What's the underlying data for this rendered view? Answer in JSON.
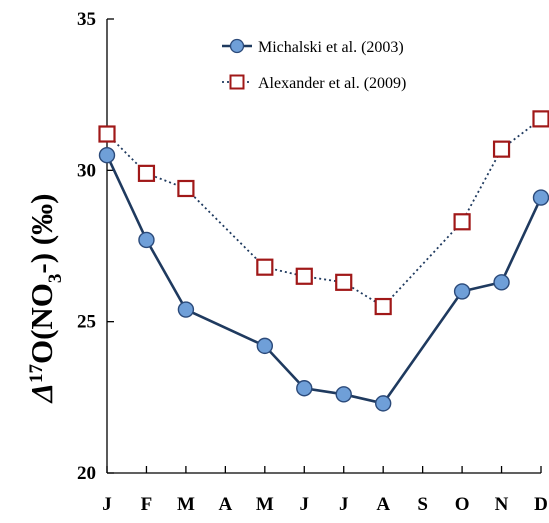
{
  "chart_data": {
    "type": "line",
    "title": "",
    "xlabel": "",
    "ylabel": {
      "symbol": "Δ",
      "sup": "17",
      "mid": "O(NO",
      "sub": "3",
      "tail": "-) (‰)"
    },
    "categories": [
      "J",
      "F",
      "M",
      "A",
      "M",
      "J",
      "J",
      "A",
      "S",
      "O",
      "N",
      "D"
    ],
    "ylim": [
      20,
      35
    ],
    "yticks": [
      20,
      25,
      30,
      35
    ],
    "grid": false,
    "legend_position": "top-right",
    "series": [
      {
        "name": "Michalski et al. (2003)",
        "marker": "circle",
        "line_style": "solid",
        "line_color": "#1f3a5f",
        "marker_fill": "#6f9fd8",
        "marker_stroke": "#2b4a7a",
        "values": [
          30.5,
          27.7,
          25.4,
          null,
          24.2,
          22.8,
          22.6,
          22.3,
          null,
          26.0,
          26.3,
          29.1
        ]
      },
      {
        "name": "Alexander et al. (2009)",
        "marker": "square",
        "line_style": "dotted",
        "line_color": "#1f3a5f",
        "marker_fill": "#ffffff",
        "marker_stroke": "#a01818",
        "values": [
          31.2,
          29.9,
          29.4,
          null,
          26.8,
          26.5,
          26.3,
          25.5,
          null,
          28.3,
          30.7,
          31.7
        ]
      }
    ]
  }
}
